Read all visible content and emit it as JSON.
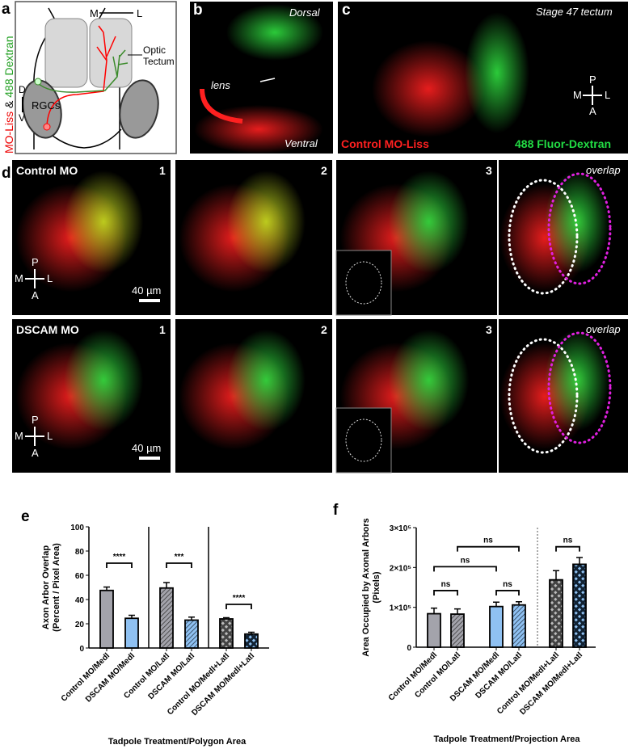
{
  "panel_labels": {
    "a": "a",
    "b": "b",
    "c": "c",
    "d": "d",
    "e": "e",
    "f": "f"
  },
  "panel_a": {
    "side_label_red": "MO-Liss",
    "side_label_amp": " & ",
    "side_label_green": "488 Dextran",
    "axis_m": "M",
    "axis_l": "L",
    "axis_d": "D",
    "axis_v": "V",
    "optic": "Optic",
    "tectum": "Tectum",
    "rgcs": "RGCs"
  },
  "panel_b": {
    "dorsal": "Dorsal",
    "ventral": "Ventral",
    "lens": "lens"
  },
  "panel_c": {
    "title": "Stage 47 tectum",
    "red_label": "Control MO-Liss",
    "green_label": "488 Fluor-Dextran",
    "compass": {
      "p": "P",
      "a": "A",
      "m": "M",
      "l": "L"
    }
  },
  "panel_d": {
    "row1_title": "Control MO",
    "row2_title": "DSCAM MO",
    "col_numbers": [
      "1",
      "2",
      "3"
    ],
    "overlap": "overlap",
    "scale_bar": "40 µm",
    "compass": {
      "p": "P",
      "a": "A",
      "m": "M",
      "l": "L"
    }
  },
  "colors": {
    "gray_bar": "#a3a3ab",
    "blue_bar": "#8fc1f2",
    "red": "#ff1a1a",
    "green": "#22cc33"
  },
  "chart_data": [
    {
      "type": "bar",
      "id": "e",
      "xlabel": "Tadpole Treatment/Polygon  Area",
      "ylabel_line1": "Axon Arbor Overlap",
      "ylabel_line2": "(Percent / Pixel Area)",
      "ylim": [
        0,
        100
      ],
      "yticks": [
        "0",
        "20",
        "40",
        "60",
        "80",
        "100"
      ],
      "ytick_values": [
        0,
        20,
        40,
        60,
        80,
        100
      ],
      "categories": [
        "Control MO/Medl",
        "DSCAM MO/Medl",
        "Control MO/Latl",
        "DSCAM MO/Latl",
        "Control MO/Medl+Latl",
        "DSCAM MO/Medl+Latl"
      ],
      "values": [
        47.5,
        24.5,
        49.5,
        23,
        24,
        11.5
      ],
      "error_upper": [
        50.3,
        27,
        54,
        25.5,
        25,
        13
      ],
      "fills": [
        "gray-solid",
        "blue-solid",
        "gray-hatch",
        "blue-hatch",
        "gray-check",
        "blue-check"
      ],
      "group_dividers_after": [
        1,
        3
      ],
      "significance": [
        {
          "from": 0,
          "to": 1,
          "y": 70,
          "label": "****"
        },
        {
          "from": 2,
          "to": 3,
          "y": 70,
          "label": "***"
        },
        {
          "from": 4,
          "to": 5,
          "y": 36,
          "label": "****"
        }
      ]
    },
    {
      "type": "bar",
      "id": "f",
      "xlabel": "Tadpole Treatment/Projection Area",
      "ylabel_line1": "Area Occupied by Axonal Arbors",
      "ylabel_line2": "(Pixels)",
      "ylim": [
        0,
        300000
      ],
      "yticks": [
        "0",
        "1×10⁵",
        "2×10⁵",
        "3×10⁵"
      ],
      "ytick_values": [
        0,
        100000,
        200000,
        300000
      ],
      "categories": [
        "Control MO/Medl",
        "Control MO/Latl",
        "DSCAM MO/Medl",
        "DSCAM MO/Latl",
        "Control MO/Medl+Latl",
        "DSCAM MO/Medl+Latl"
      ],
      "values": [
        84000,
        83000,
        102000,
        106000,
        169000,
        208000
      ],
      "error_upper": [
        98000,
        96000,
        113000,
        114000,
        192000,
        225000
      ],
      "fills": [
        "gray-solid",
        "gray-hatch",
        "blue-solid",
        "blue-hatch",
        "gray-check",
        "blue-check"
      ],
      "dotted_divider_after": 3,
      "significance": [
        {
          "from": 0,
          "to": 1,
          "y": 142000,
          "label": "ns"
        },
        {
          "from": 2,
          "to": 3,
          "y": 142000,
          "label": "ns"
        },
        {
          "from": 0,
          "to": 2,
          "y": 202000,
          "label": "ns"
        },
        {
          "from": 1,
          "to": 3,
          "y": 252000,
          "label": "ns"
        },
        {
          "from": 4,
          "to": 5,
          "y": 252000,
          "label": "ns"
        }
      ]
    }
  ]
}
